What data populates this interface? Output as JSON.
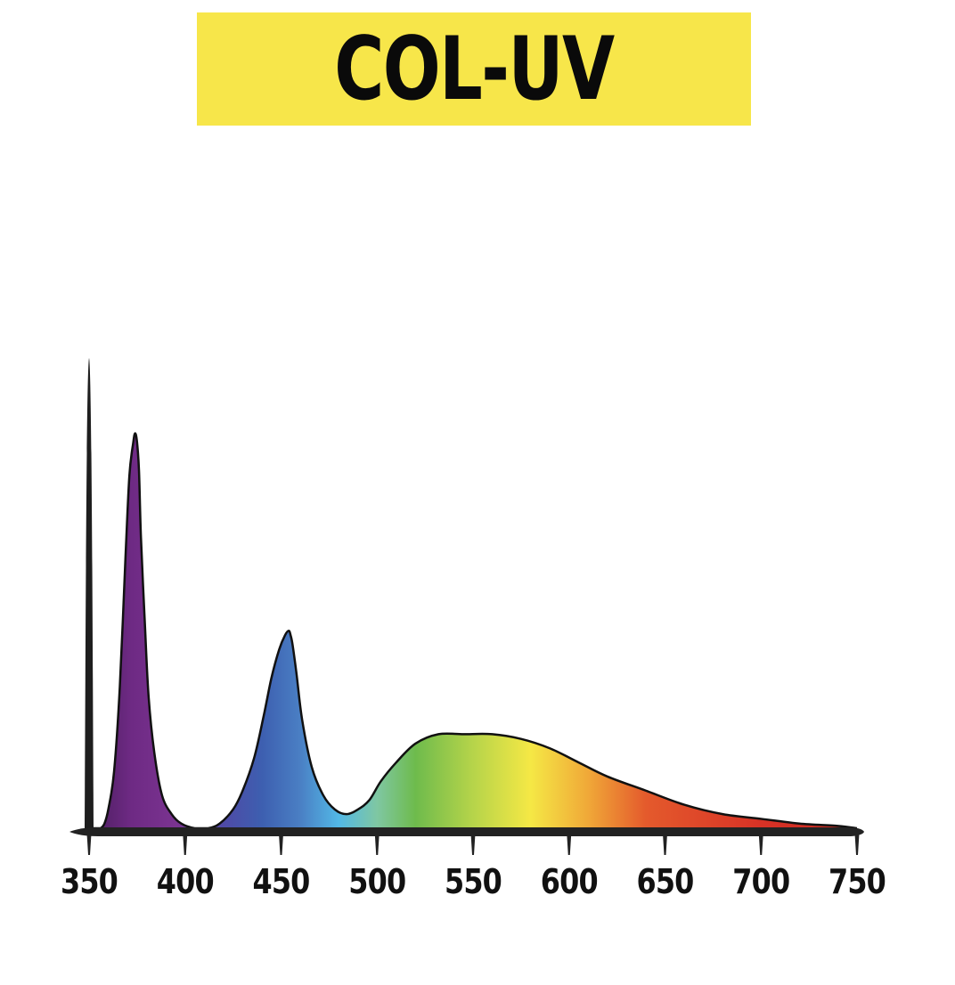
{
  "chart_data": {
    "type": "area",
    "title": "COL-UV",
    "xlabel": "",
    "ylabel": "",
    "xlim": [
      350,
      750
    ],
    "ylim": [
      0,
      1
    ],
    "grid": false,
    "x_ticks": [
      "350",
      "400",
      "450",
      "500",
      "550",
      "600",
      "650",
      "700",
      "750"
    ],
    "x": [
      350,
      352,
      354,
      356,
      358,
      360,
      363,
      366,
      369,
      371,
      373,
      374,
      375,
      376,
      377,
      379,
      381,
      384,
      388,
      393,
      398,
      405,
      412,
      418,
      425,
      430,
      436,
      441,
      445,
      449,
      452,
      454,
      455,
      456,
      458,
      461,
      466,
      472,
      478,
      484,
      490,
      496,
      502,
      510,
      520,
      532,
      545,
      560,
      575,
      590,
      605,
      620,
      640,
      660,
      680,
      700,
      720,
      740,
      750
    ],
    "y": [
      0.0,
      0.0,
      0.0,
      0.0,
      0.01,
      0.04,
      0.12,
      0.3,
      0.58,
      0.75,
      0.82,
      0.84,
      0.82,
      0.76,
      0.62,
      0.44,
      0.28,
      0.16,
      0.07,
      0.03,
      0.01,
      0.0,
      0.0,
      0.01,
      0.04,
      0.08,
      0.15,
      0.24,
      0.32,
      0.38,
      0.41,
      0.42,
      0.41,
      0.39,
      0.33,
      0.23,
      0.13,
      0.07,
      0.04,
      0.03,
      0.04,
      0.06,
      0.1,
      0.14,
      0.18,
      0.2,
      0.2,
      0.2,
      0.19,
      0.17,
      0.14,
      0.11,
      0.08,
      0.05,
      0.03,
      0.02,
      0.01,
      0.005,
      0.0
    ],
    "spike": {
      "x": 350,
      "y": 1.0
    },
    "colors": {
      "gradient": [
        {
          "at": 350,
          "color": "#4a1d5e"
        },
        {
          "at": 372,
          "color": "#6e2a84"
        },
        {
          "at": 395,
          "color": "#7a3390"
        },
        {
          "at": 420,
          "color": "#4f4aa6"
        },
        {
          "at": 440,
          "color": "#3d5fb0"
        },
        {
          "at": 460,
          "color": "#4a7fc4"
        },
        {
          "at": 480,
          "color": "#52b8e6"
        },
        {
          "at": 500,
          "color": "#7fc7a2"
        },
        {
          "at": 520,
          "color": "#6ebb4c"
        },
        {
          "at": 550,
          "color": "#b6d44a"
        },
        {
          "at": 580,
          "color": "#f5e845"
        },
        {
          "at": 610,
          "color": "#f0a838"
        },
        {
          "at": 640,
          "color": "#e45a2c"
        },
        {
          "at": 700,
          "color": "#d83226"
        },
        {
          "at": 750,
          "color": "#c92a20"
        }
      ],
      "outline": "#111111",
      "axis": "#222222",
      "title_bg": "#f7e64a",
      "title_text": "#0a0a0a"
    }
  }
}
